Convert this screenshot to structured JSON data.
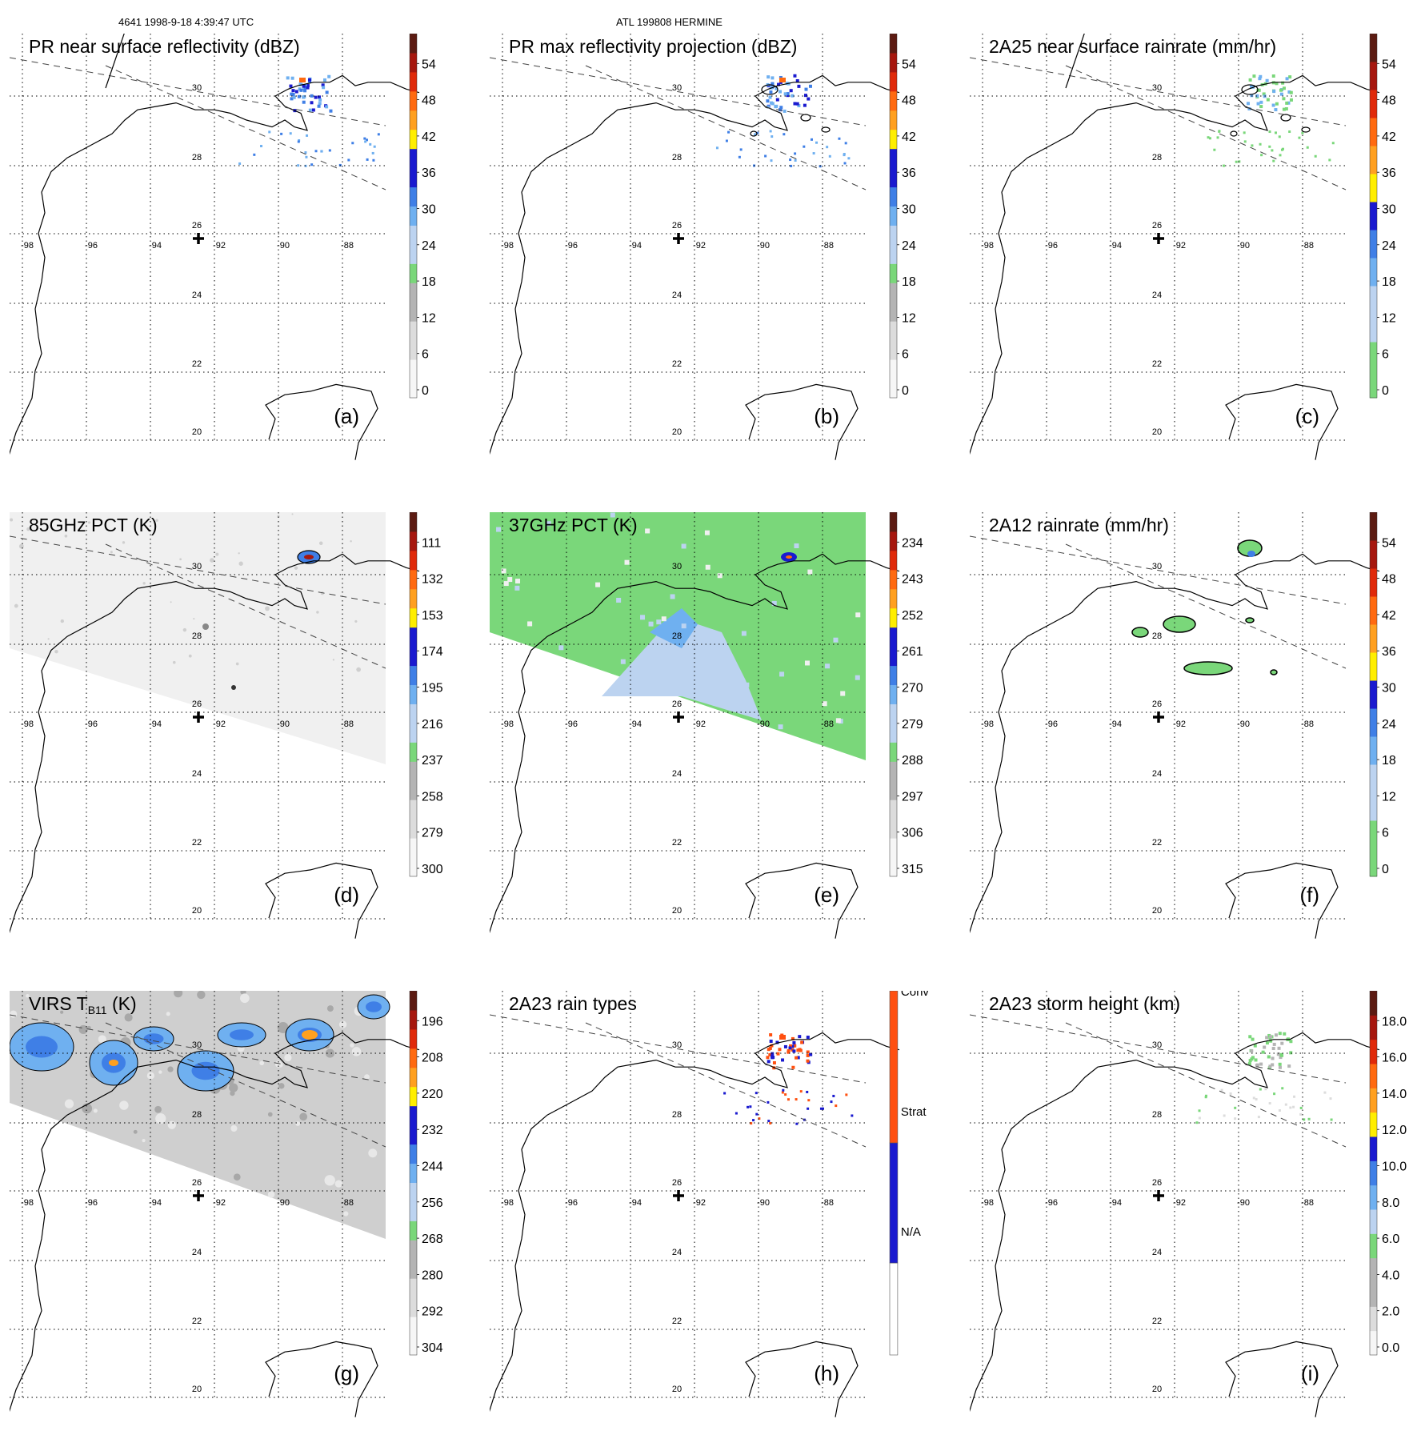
{
  "header": {
    "orbit_time": "4641 1998-9-18 4:39:47 UTC",
    "storm_name": "ATL 199808 HERMINE"
  },
  "map": {
    "lat_labels": [
      "30",
      "28",
      "26",
      "24",
      "22",
      "20"
    ],
    "lon_labels": [
      "-98",
      "-96",
      "-94",
      "-92",
      "-90",
      "-88"
    ]
  },
  "colors": {
    "ramp": [
      "#f6f6f6",
      "#dcdcdc",
      "#b4b4b4",
      "#7ad77a",
      "#bcd3f0",
      "#6fb0f0",
      "#3f7fe6",
      "#1a1acf",
      "#ffee00",
      "#ffa020",
      "#ff6a10",
      "#e02a0a",
      "#a6170e",
      "#5c1b12"
    ],
    "raintype": [
      "#ffffff",
      "#1a1acf",
      "#ff5010"
    ],
    "coast": "#000000"
  },
  "panels": [
    {
      "title": "PR near surface reflectivity (dBZ)",
      "letter": "(a)",
      "cb_ticks": [
        "0",
        "6",
        "12",
        "18",
        "24",
        "30",
        "36",
        "42",
        "48",
        "54"
      ],
      "cb_type": "ramp",
      "field": "pr_swath",
      "show_swath": true,
      "show_nadir_line": true
    },
    {
      "title": "PR max reflectivity projection (dBZ)",
      "letter": "(b)",
      "cb_ticks": [
        "0",
        "6",
        "12",
        "18",
        "24",
        "30",
        "36",
        "42",
        "48",
        "54"
      ],
      "cb_type": "ramp",
      "field": "pr_swath_contour",
      "show_swath": true,
      "show_nadir_line": false
    },
    {
      "title": "2A25 near surface rainrate (mm/hr)",
      "letter": "(c)",
      "cb_ticks": [
        "0",
        "6",
        "12",
        "18",
        "24",
        "30",
        "36",
        "42",
        "48",
        "54"
      ],
      "cb_type": "ramp_rain",
      "field": "pr_rain",
      "show_swath": true,
      "show_nadir_line": true
    },
    {
      "title": "85GHz PCT (K)",
      "letter": "(d)",
      "cb_ticks": [
        "300",
        "279",
        "258",
        "237",
        "216",
        "195",
        "174",
        "153",
        "132",
        "111"
      ],
      "cb_type": "ramp",
      "field": "tmi85",
      "show_swath": true,
      "show_nadir_line": false
    },
    {
      "title": "37GHz PCT (K)",
      "letter": "(e)",
      "cb_ticks": [
        "315",
        "306",
        "297",
        "288",
        "279",
        "270",
        "261",
        "252",
        "243",
        "234"
      ],
      "cb_type": "ramp",
      "field": "tmi37",
      "show_swath": false,
      "show_nadir_line": false
    },
    {
      "title": "2A12 rainrate (mm/hr)",
      "letter": "(f)",
      "cb_ticks": [
        "0",
        "6",
        "12",
        "18",
        "24",
        "30",
        "36",
        "42",
        "48",
        "54"
      ],
      "cb_type": "ramp_rain",
      "field": "tmi_rain",
      "show_swath": true,
      "show_nadir_line": false
    },
    {
      "title": "VIRS T",
      "title_sub": "B11",
      "title_tail": " (K)",
      "letter": "(g)",
      "cb_ticks": [
        "304",
        "292",
        "280",
        "268",
        "256",
        "244",
        "232",
        "220",
        "208",
        "196"
      ],
      "cb_type": "ramp",
      "field": "virs",
      "show_swath": true,
      "show_nadir_line": false
    },
    {
      "title": "2A23 rain types",
      "letter": "(h)",
      "cb_ticks": [
        "N/A",
        "Strat",
        "Conv"
      ],
      "cb_type": "raintype",
      "field": "raintype",
      "show_swath": true,
      "show_nadir_line": false
    },
    {
      "title": "2A23 storm height (km)",
      "letter": "(i)",
      "cb_ticks": [
        "0.0",
        "2.0",
        "4.0",
        "6.0",
        "8.0",
        "10.0",
        "12.0",
        "14.0",
        "16.0",
        "18.0"
      ],
      "cb_type": "ramp_height",
      "field": "height",
      "show_swath": true,
      "show_nadir_line": false
    }
  ]
}
